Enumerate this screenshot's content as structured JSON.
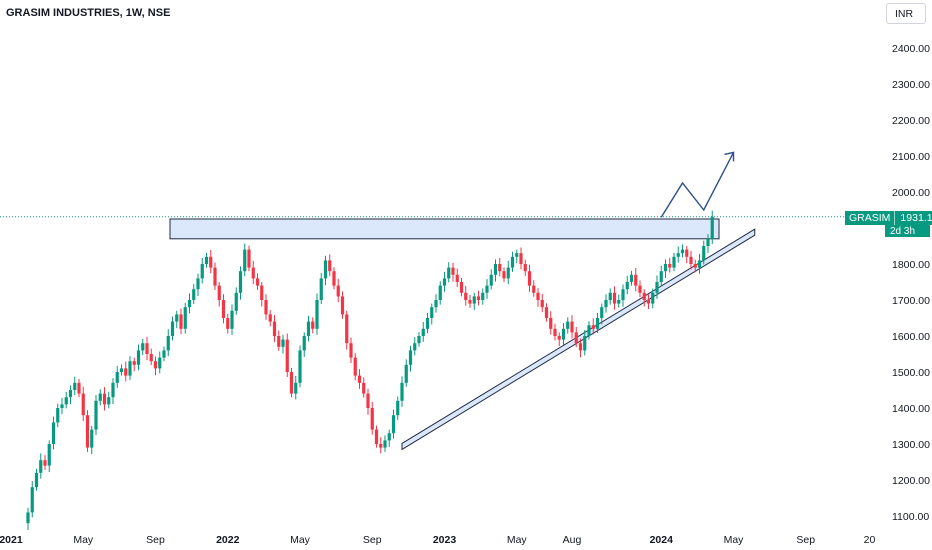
{
  "header": {
    "title": "GRASIM INDUSTRIES, 1W, NSE",
    "currency": "INR"
  },
  "price_tag": {
    "symbol": "GRASIM",
    "price": "1931.15",
    "countdown": "2d 3h"
  },
  "colors": {
    "up": "#089981",
    "down": "#f23645",
    "box_fill": "#dbe8fb",
    "line": "#1e2a44",
    "arrow": "#2d4f8a"
  },
  "chart_data": {
    "type": "candlestick",
    "title": "GRASIM INDUSTRIES, 1W, NSE",
    "ylim": [
      1070,
      2520
    ],
    "y_ticks": [
      "2400.00",
      "2300.00",
      "2200.00",
      "2100.00",
      "2000.00",
      "1900.00",
      "1800.00",
      "1700.00",
      "1600.00",
      "1500.00",
      "1400.00",
      "1300.00",
      "1200.00",
      "1100.00"
    ],
    "x_ticks": [
      {
        "label": "2021",
        "week": -4,
        "year": true
      },
      {
        "label": "May",
        "week": 13
      },
      {
        "label": "Sep",
        "week": 30
      },
      {
        "label": "2022",
        "week": 47,
        "year": true
      },
      {
        "label": "May",
        "week": 64
      },
      {
        "label": "Sep",
        "week": 81
      },
      {
        "label": "2023",
        "week": 98,
        "year": true
      },
      {
        "label": "May",
        "week": 115
      },
      {
        "label": "Aug",
        "week": 128
      },
      {
        "label": "2024",
        "week": 149,
        "year": true
      },
      {
        "label": "May",
        "week": 166
      },
      {
        "label": "Sep",
        "week": 183
      },
      {
        "label": "20",
        "week": 198
      }
    ],
    "last_price": 1931.15,
    "closes": [
      1110,
      1180,
      1220,
      1255,
      1240,
      1300,
      1360,
      1400,
      1410,
      1430,
      1450,
      1470,
      1440,
      1380,
      1290,
      1340,
      1420,
      1440,
      1410,
      1430,
      1470,
      1500,
      1510,
      1490,
      1530,
      1520,
      1560,
      1580,
      1550,
      1530,
      1510,
      1540,
      1560,
      1600,
      1640,
      1660,
      1620,
      1680,
      1700,
      1730,
      1760,
      1800,
      1820,
      1790,
      1740,
      1700,
      1650,
      1620,
      1670,
      1720,
      1780,
      1840,
      1790,
      1760,
      1740,
      1700,
      1660,
      1640,
      1600,
      1570,
      1590,
      1500,
      1440,
      1470,
      1560,
      1600,
      1640,
      1620,
      1700,
      1760,
      1810,
      1780,
      1740,
      1710,
      1660,
      1580,
      1540,
      1490,
      1470,
      1440,
      1400,
      1340,
      1300,
      1290,
      1310,
      1330,
      1380,
      1420,
      1470,
      1520,
      1560,
      1580,
      1600,
      1620,
      1650,
      1680,
      1700,
      1740,
      1760,
      1790,
      1770,
      1750,
      1720,
      1700,
      1690,
      1710,
      1700,
      1720,
      1740,
      1770,
      1800,
      1780,
      1760,
      1790,
      1820,
      1830,
      1800,
      1780,
      1740,
      1720,
      1700,
      1680,
      1650,
      1620,
      1600,
      1590,
      1620,
      1640,
      1610,
      1580,
      1560,
      1600,
      1630,
      1620,
      1650,
      1680,
      1700,
      1720,
      1690,
      1700,
      1730,
      1750,
      1770,
      1740,
      1720,
      1700,
      1690,
      1720,
      1750,
      1780,
      1800,
      1790,
      1820,
      1830,
      1840,
      1820,
      1800,
      1790,
      1810,
      1850,
      1870,
      1931.15
    ],
    "resistance_zone": [
      1870,
      1925
    ],
    "trendline": {
      "from": {
        "week": 88,
        "price": 1285
      },
      "to": {
        "week": 171,
        "price": 1880
      }
    },
    "arrow_path": [
      {
        "week": 149,
        "price": 1930
      },
      {
        "week": 154,
        "price": 2025
      },
      {
        "week": 159,
        "price": 1950
      },
      {
        "week": 166,
        "price": 2110
      }
    ]
  }
}
